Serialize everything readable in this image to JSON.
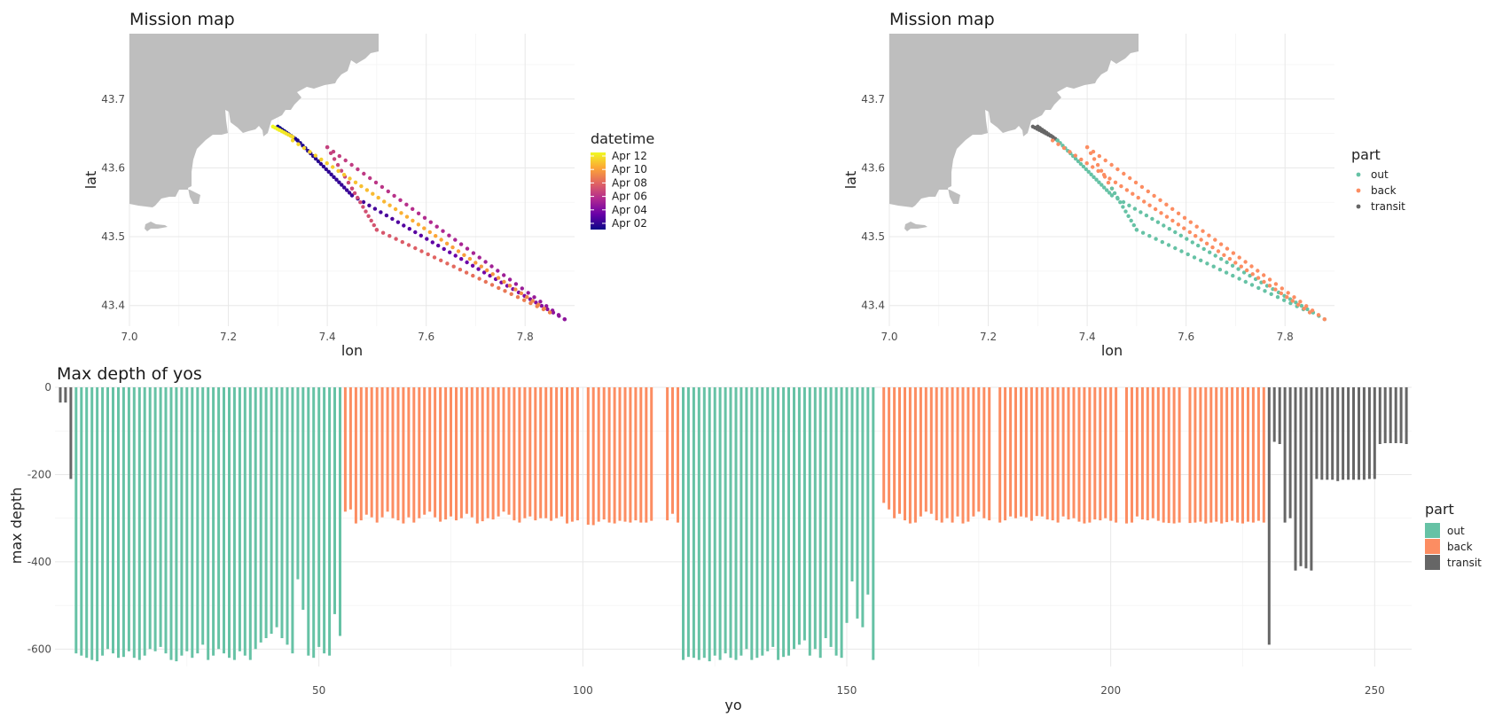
{
  "colors": {
    "out": "#66C2A5",
    "back": "#FC8D62",
    "transit": "#666666",
    "land": "#BEBEBE",
    "datetime_gradient": [
      "#0D0887",
      "#6A00A8",
      "#B12A90",
      "#E16462",
      "#FCA636",
      "#F0F921"
    ]
  },
  "chart_data": [
    {
      "type": "scatter",
      "title": "Mission map",
      "xlabel": "lon",
      "ylabel": "lat",
      "xlim": [
        7.0,
        7.9
      ],
      "ylim": [
        43.37,
        43.795
      ],
      "xticks": [
        "7.0",
        "7.2",
        "7.4",
        "7.6",
        "7.8"
      ],
      "yticks": [
        "43.4",
        "43.5",
        "43.6",
        "43.7"
      ],
      "grid": true,
      "legend_title": "datetime",
      "legend_placement": "right",
      "legend_labels": [
        "Apr 12",
        "Apr 10",
        "Apr 08",
        "Apr 06",
        "Apr 04",
        "Apr 02"
      ],
      "color_by": "datetime",
      "track": [
        {
          "segment": "transit",
          "start": [
            7.3,
            43.66
          ],
          "end": [
            7.34,
            43.64
          ],
          "n": 10,
          "t0": 0.0,
          "t1": 0.03
        },
        {
          "segment": "out",
          "start": [
            7.34,
            43.64
          ],
          "end": [
            7.45,
            43.56
          ],
          "n": 22,
          "t0": 0.03,
          "t1": 0.1
        },
        {
          "segment": "out",
          "start": [
            7.45,
            43.56
          ],
          "end": [
            7.88,
            43.38
          ],
          "n": 38,
          "t0": 0.1,
          "t1": 0.3
        },
        {
          "segment": "back",
          "start": [
            7.88,
            43.38
          ],
          "end": [
            7.4,
            43.63
          ],
          "n": 40,
          "t0": 0.3,
          "t1": 0.48
        },
        {
          "segment": "back",
          "start": [
            7.4,
            43.63
          ],
          "end": [
            7.45,
            43.57
          ],
          "n": 8,
          "t0": 0.48,
          "t1": 0.51
        },
        {
          "segment": "out",
          "start": [
            7.45,
            43.57
          ],
          "end": [
            7.5,
            43.51
          ],
          "n": 10,
          "t0": 0.51,
          "t1": 0.55
        },
        {
          "segment": "out",
          "start": [
            7.5,
            43.51
          ],
          "end": [
            7.85,
            43.39
          ],
          "n": 28,
          "t0": 0.55,
          "t1": 0.7
        },
        {
          "segment": "back",
          "start": [
            7.85,
            43.39
          ],
          "end": [
            7.33,
            43.64
          ],
          "n": 46,
          "t0": 0.7,
          "t1": 0.92
        },
        {
          "segment": "transit",
          "start": [
            7.33,
            43.645
          ],
          "end": [
            7.29,
            43.66
          ],
          "n": 10,
          "t0": 0.92,
          "t1": 1.0
        }
      ]
    },
    {
      "type": "scatter",
      "title": "Mission map",
      "xlabel": "lon",
      "ylabel": "lat",
      "xlim": [
        7.0,
        7.9
      ],
      "ylim": [
        43.37,
        43.795
      ],
      "xticks": [
        "7.0",
        "7.2",
        "7.4",
        "7.6",
        "7.8"
      ],
      "yticks": [
        "43.4",
        "43.5",
        "43.6",
        "43.7"
      ],
      "grid": true,
      "legend_title": "part",
      "legend_placement": "right",
      "legend_labels": [
        "out",
        "back",
        "transit"
      ],
      "color_by": "part"
    },
    {
      "type": "bar",
      "title": "Max depth of yos",
      "xlabel": "yo",
      "ylabel": "max depth",
      "xlim": [
        0,
        257
      ],
      "ylim": [
        -640,
        0
      ],
      "xticks": [
        "50",
        "100",
        "150",
        "200",
        "250"
      ],
      "yticks": [
        "0",
        "-200",
        "-400",
        "-600"
      ],
      "grid": true,
      "legend_title": "part",
      "legend_placement": "right",
      "legend_labels": [
        "out",
        "back",
        "transit"
      ],
      "series": [
        {
          "name": "transit",
          "x": [
            1,
            2,
            3
          ],
          "values": [
            -35,
            -35,
            -210
          ]
        },
        {
          "name": "out",
          "x": [
            4,
            5,
            6,
            7,
            8,
            9,
            10,
            11,
            12,
            13,
            14,
            15,
            16,
            17,
            18,
            19,
            20,
            21,
            22,
            23,
            24,
            25,
            26,
            27,
            28,
            29,
            30,
            31,
            32,
            33,
            34,
            35,
            36,
            37,
            38,
            39,
            40,
            41,
            42,
            43,
            44,
            45,
            46,
            47,
            48,
            49,
            50,
            51,
            52,
            53,
            54
          ],
          "values": [
            -610,
            -615,
            -620,
            -625,
            -628,
            -615,
            -600,
            -610,
            -620,
            -618,
            -605,
            -620,
            -625,
            -615,
            -600,
            -605,
            -595,
            -610,
            -625,
            -628,
            -615,
            -605,
            -620,
            -610,
            -590,
            -625,
            -615,
            -600,
            -610,
            -620,
            -625,
            -605,
            -615,
            -625,
            -600,
            -585,
            -575,
            -565,
            -550,
            -575,
            -590,
            -610,
            -440,
            -510,
            -615,
            -620,
            -595,
            -610,
            -615,
            -520,
            -570
          ]
        },
        {
          "name": "back",
          "x": [
            55,
            56,
            57,
            58,
            59,
            60,
            61,
            62,
            63,
            64,
            65,
            66,
            67,
            68,
            69,
            70,
            71,
            72,
            73,
            74,
            75,
            76,
            77,
            78,
            79,
            80,
            81,
            82,
            83,
            84,
            85,
            86,
            87,
            88,
            89,
            90,
            91,
            92,
            93,
            94,
            95,
            96,
            97,
            98,
            99,
            101,
            102,
            103,
            104,
            105,
            106,
            107,
            108,
            109,
            110,
            111,
            112,
            113,
            116,
            117,
            118
          ],
          "values": [
            -285,
            -280,
            -312,
            -305,
            -292,
            -298,
            -310,
            -298,
            -285,
            -300,
            -305,
            -312,
            -298,
            -310,
            -300,
            -292,
            -285,
            -298,
            -308,
            -303,
            -296,
            -305,
            -300,
            -290,
            -298,
            -312,
            -307,
            -300,
            -303,
            -296,
            -285,
            -292,
            -305,
            -310,
            -300,
            -296,
            -305,
            -300,
            -300,
            -306,
            -300,
            -296,
            -312,
            -308,
            -305,
            -315,
            -316,
            -308,
            -303,
            -310,
            -312,
            -306,
            -308,
            -310,
            -305,
            -310,
            -310,
            -306,
            -305,
            -290,
            -310
          ]
        },
        {
          "name": "out",
          "x": [
            119,
            120,
            121,
            122,
            123,
            124,
            125,
            126,
            127,
            128,
            129,
            130,
            131,
            132,
            133,
            134,
            135,
            136,
            137,
            138,
            139,
            140,
            141,
            142,
            143,
            144,
            145,
            146,
            147,
            148,
            149,
            150,
            151,
            152,
            153,
            154,
            155
          ],
          "values": [
            -625,
            -618,
            -620,
            -625,
            -620,
            -628,
            -615,
            -625,
            -610,
            -620,
            -625,
            -615,
            -600,
            -625,
            -620,
            -615,
            -605,
            -595,
            -625,
            -618,
            -615,
            -600,
            -590,
            -580,
            -615,
            -600,
            -620,
            -575,
            -595,
            -615,
            -620,
            -540,
            -445,
            -530,
            -550,
            -475,
            -625
          ]
        },
        {
          "name": "back",
          "x": [
            157,
            158,
            159,
            160,
            161,
            162,
            163,
            164,
            165,
            166,
            167,
            168,
            169,
            170,
            171,
            172,
            173,
            174,
            175,
            176,
            177,
            179,
            180,
            181,
            182,
            183,
            184,
            185,
            186,
            187,
            188,
            189,
            190,
            191,
            192,
            193,
            194,
            195,
            196,
            197,
            198,
            199,
            200,
            201,
            203,
            204,
            205,
            206,
            207,
            208,
            209,
            210,
            211,
            212,
            213,
            215,
            216,
            217,
            218,
            219,
            220,
            221,
            222,
            223,
            224,
            225,
            226,
            227,
            228,
            229
          ],
          "values": [
            -265,
            -280,
            -300,
            -290,
            -305,
            -312,
            -310,
            -296,
            -285,
            -290,
            -305,
            -310,
            -300,
            -310,
            -296,
            -312,
            -308,
            -296,
            -285,
            -300,
            -305,
            -310,
            -305,
            -296,
            -300,
            -296,
            -298,
            -306,
            -295,
            -296,
            -303,
            -305,
            -310,
            -296,
            -303,
            -300,
            -308,
            -312,
            -310,
            -303,
            -305,
            -300,
            -306,
            -310,
            -312,
            -310,
            -296,
            -303,
            -305,
            -300,
            -306,
            -310,
            -311,
            -312,
            -310,
            -311,
            -310,
            -308,
            -312,
            -310,
            -308,
            -312,
            -309,
            -306,
            -310,
            -312,
            -308,
            -310,
            -306,
            -310
          ]
        },
        {
          "name": "transit",
          "x": [
            230,
            231,
            232,
            233,
            234,
            235,
            236,
            237,
            238,
            239,
            240,
            241,
            242,
            243,
            244,
            245,
            246,
            247,
            248,
            249,
            250,
            251,
            252,
            253,
            254,
            255,
            256
          ],
          "values": [
            -590,
            -125,
            -130,
            -310,
            -300,
            -420,
            -410,
            -415,
            -420,
            -210,
            -212,
            -212,
            -212,
            -215,
            -212,
            -212,
            -212,
            -212,
            -212,
            -210,
            -210,
            -130,
            -128,
            -128,
            -128,
            -128,
            -130
          ]
        }
      ]
    }
  ]
}
